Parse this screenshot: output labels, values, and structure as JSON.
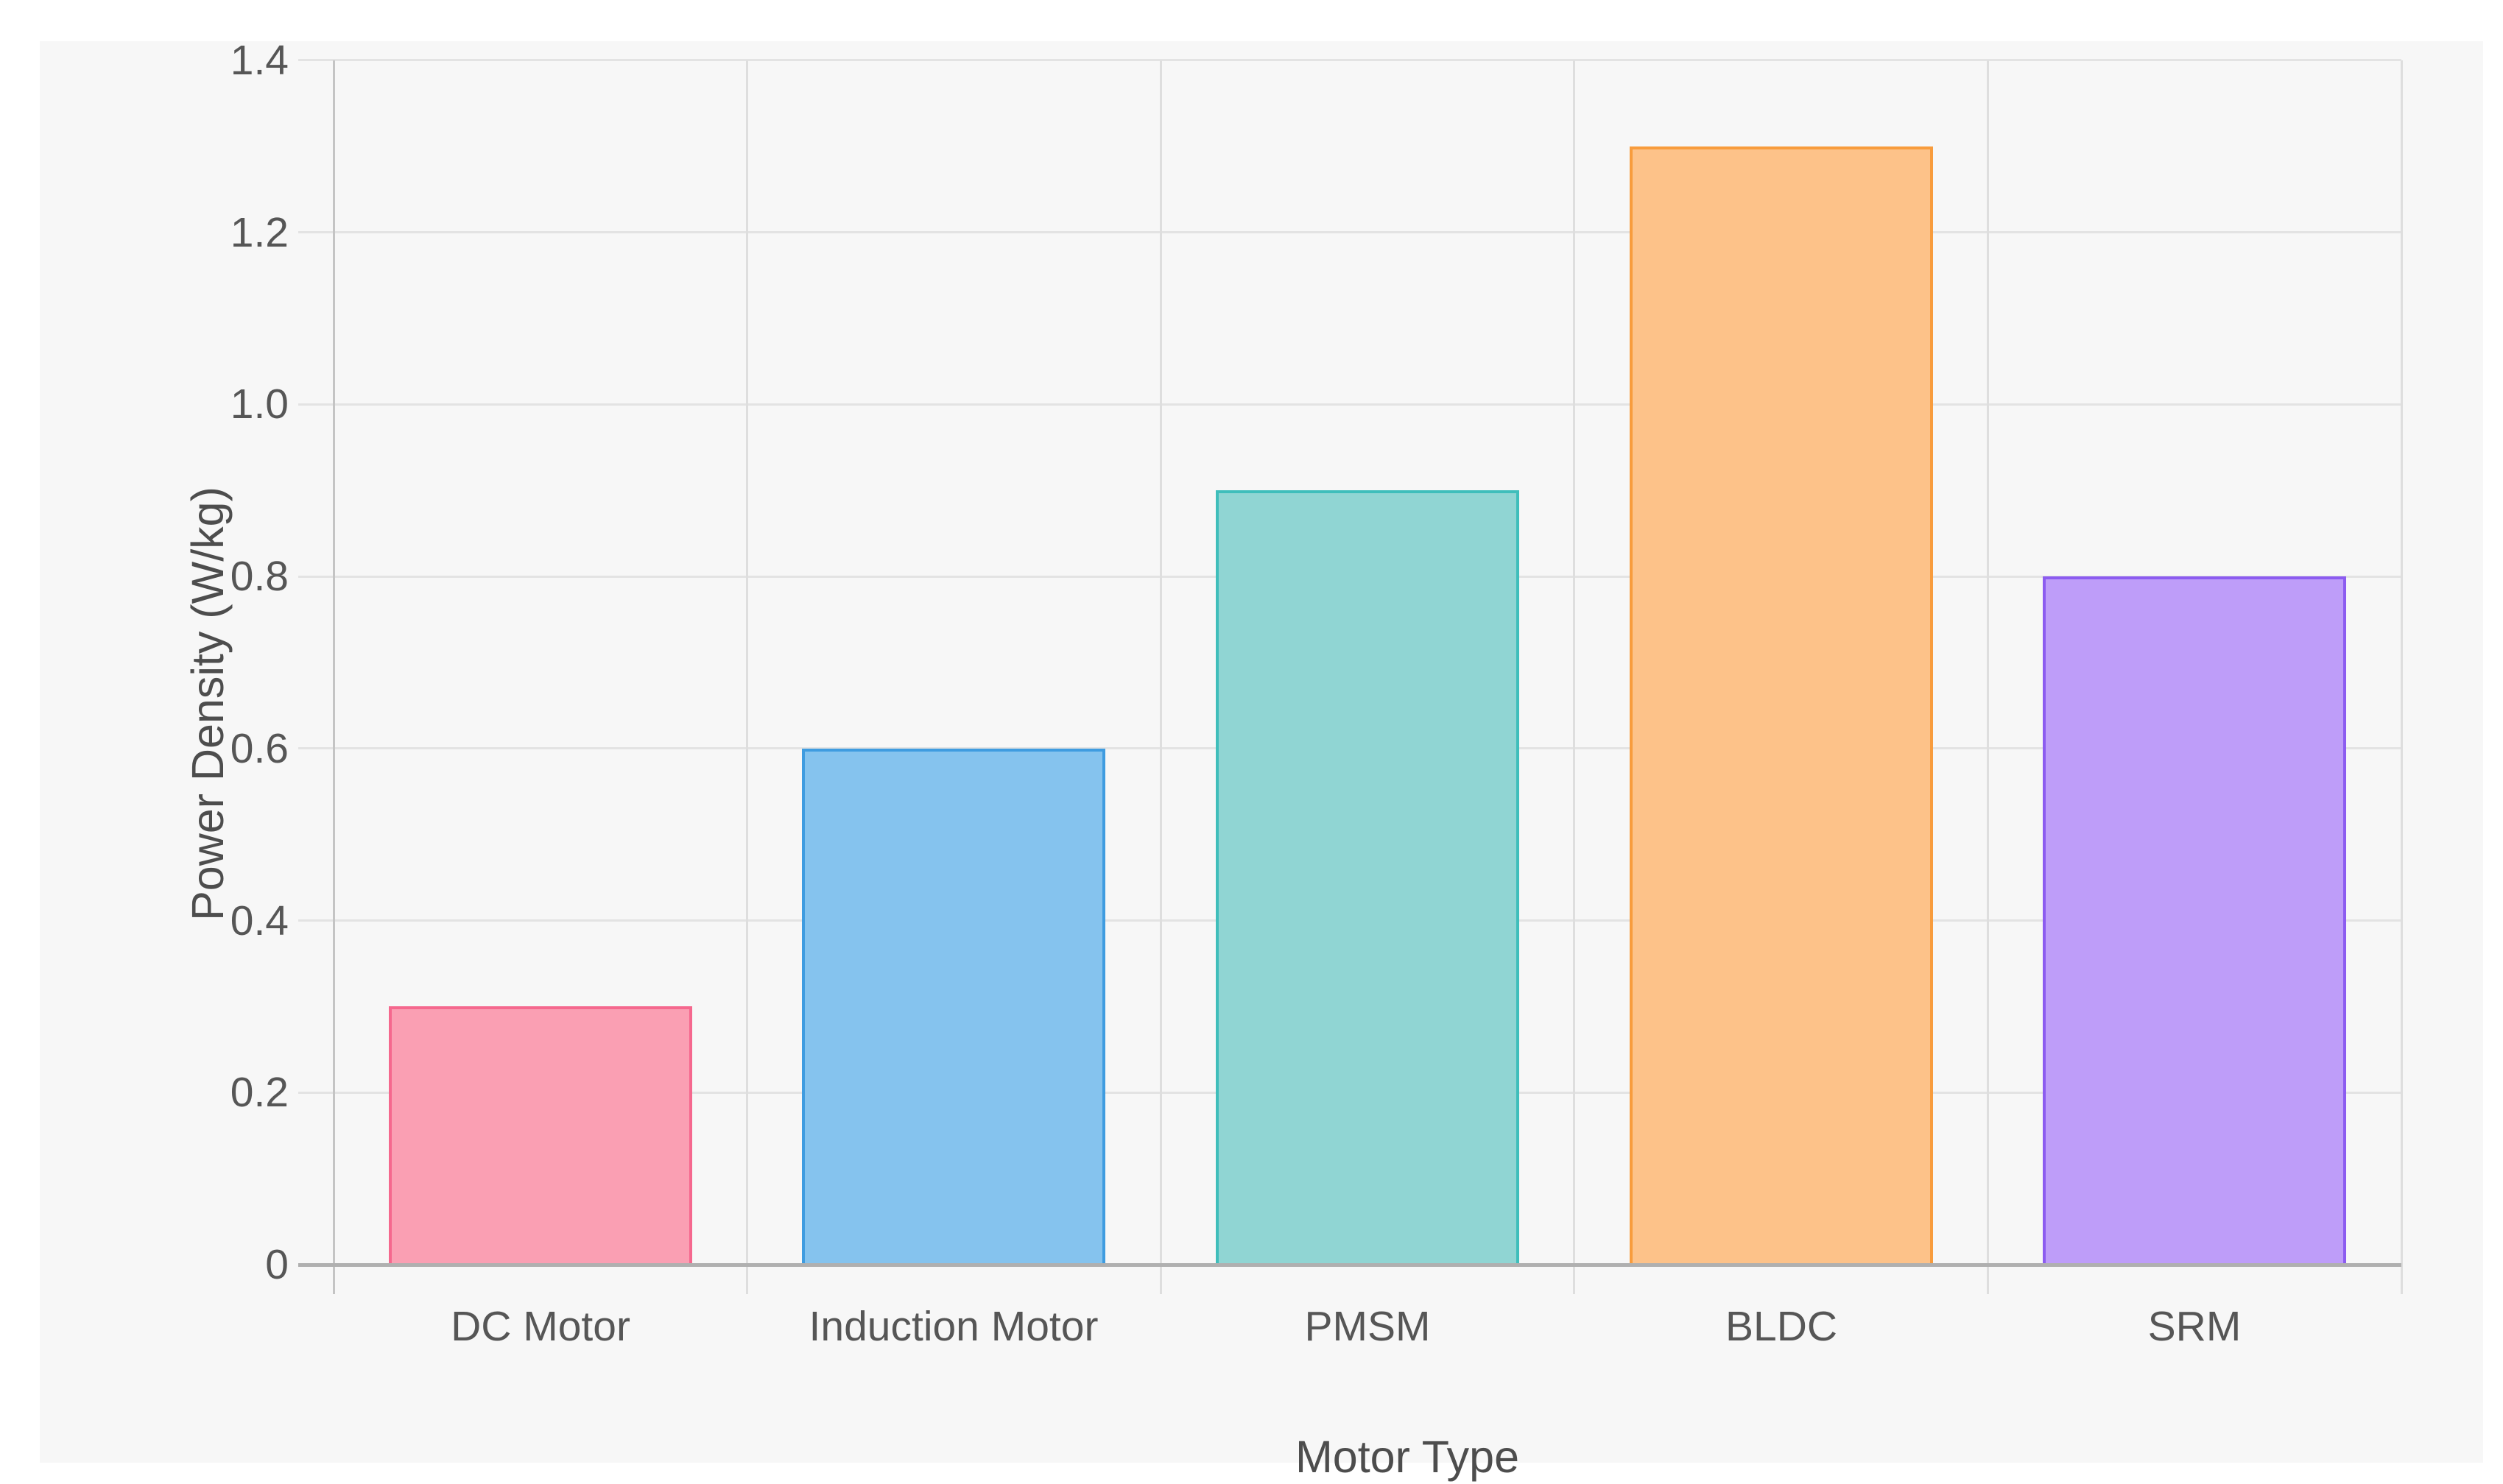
{
  "chart_data": {
    "type": "bar",
    "title": "",
    "categories": [
      "DC Motor",
      "Induction Motor",
      "PMSM",
      "BLDC",
      "SRM"
    ],
    "values": [
      0.3,
      0.6,
      0.9,
      1.3,
      0.8
    ],
    "xlabel": "Motor Type",
    "ylabel": "Power Density (W/kg)",
    "ylim": [
      0,
      1.4
    ],
    "ytick_step": 0.2,
    "ytick_labels": [
      "0",
      "0.2",
      "0.4",
      "0.6",
      "0.8",
      "1.0",
      "1.2",
      "1.4"
    ],
    "grid": true,
    "legend": false,
    "bar_fill_colors": [
      "#FA9FB3",
      "#85C3EE",
      "#90D5D3",
      "#FDC289",
      "#BE9DF9"
    ],
    "bar_border_colors": [
      "#F5688E",
      "#3F9CE0",
      "#3FBEBB",
      "#F89C3D",
      "#8C5CF0"
    ]
  },
  "colors": {
    "canvas_background": "#f7f7f7",
    "horizontal_gridline": "#e3e3e3",
    "vertical_gridline": "#dedede",
    "y_axis_line": "#c4c4c4",
    "x_axis_baseline": "#b0b0b0",
    "tick_label_text": "#565656",
    "axis_title_text": "#4d4d4d"
  }
}
